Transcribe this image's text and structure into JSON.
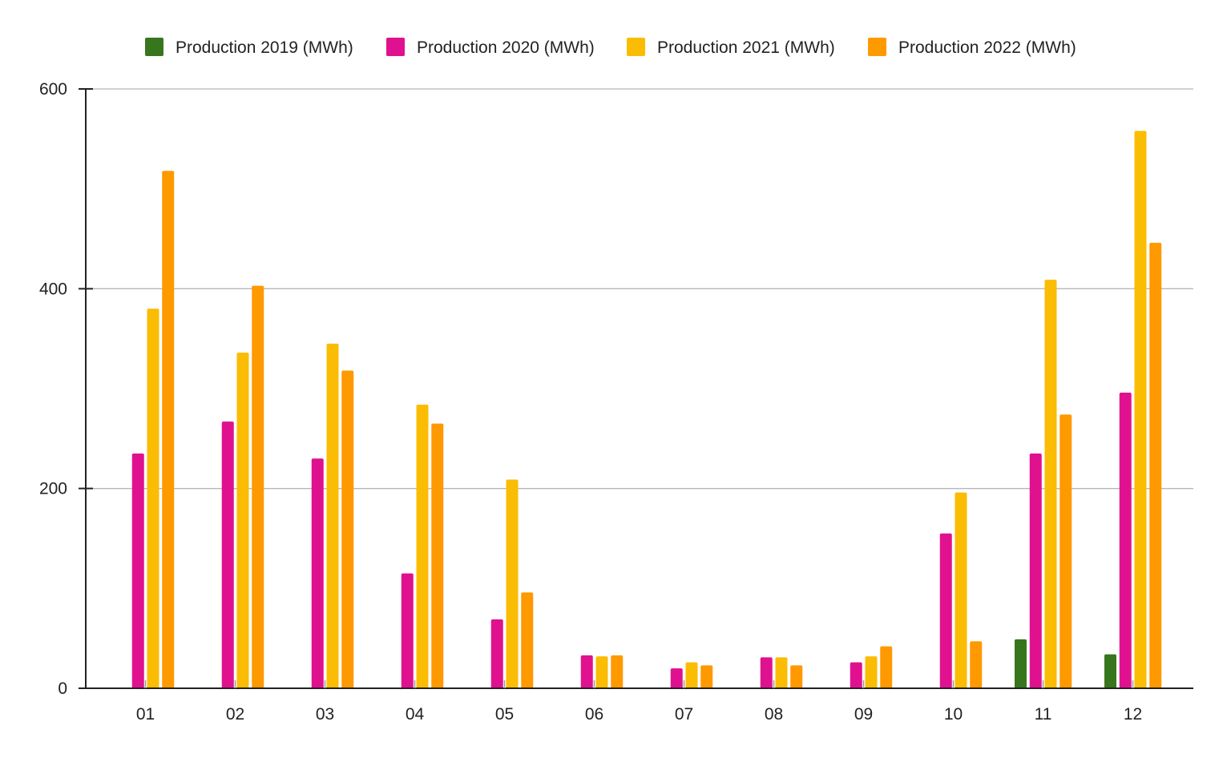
{
  "chart_data": {
    "type": "bar",
    "title": "",
    "xlabel": "",
    "ylabel": "",
    "ylim": [
      0,
      600
    ],
    "yticks": [
      0,
      200,
      400,
      600
    ],
    "grid": true,
    "legend_position": "top-center",
    "categories": [
      "01",
      "02",
      "03",
      "04",
      "05",
      "06",
      "07",
      "08",
      "09",
      "10",
      "11",
      "12"
    ],
    "series": [
      {
        "name": "Production 2019 (MWh)",
        "color": "#38761d",
        "values": [
          0,
          0,
          0,
          0,
          0,
          0,
          0,
          0,
          0,
          0,
          49,
          34
        ]
      },
      {
        "name": "Production 2020 (MWh)",
        "color": "#e0118f",
        "values": [
          235,
          267,
          230,
          115,
          69,
          33,
          20,
          31,
          26,
          155,
          235,
          296
        ]
      },
      {
        "name": "Production 2021 (MWh)",
        "color": "#fbbc04",
        "values": [
          380,
          336,
          345,
          284,
          209,
          32,
          26,
          31,
          32,
          196,
          409,
          558
        ]
      },
      {
        "name": "Production 2022 (MWh)",
        "color": "#ff9900",
        "values": [
          518,
          403,
          318,
          265,
          96,
          33,
          23,
          23,
          42,
          47,
          274,
          446
        ]
      }
    ]
  }
}
